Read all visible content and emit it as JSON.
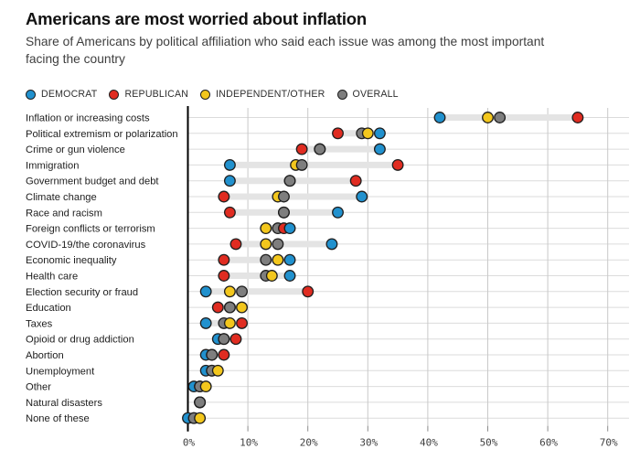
{
  "header": {
    "title": "Americans are most worried about inflation",
    "subtitle": "Share of Americans by political affiliation who said each issue was among the most important facing the country"
  },
  "legend": {
    "items": [
      {
        "key": "democrat",
        "label": "DEMOCRAT",
        "color": "#2191CE"
      },
      {
        "key": "republican",
        "label": "REPUBLICAN",
        "color": "#E02C21"
      },
      {
        "key": "independent",
        "label": "INDEPENDENT/OTHER",
        "color": "#F3C71D"
      },
      {
        "key": "overall",
        "label": "OVERALL",
        "color": "#7E7E7E"
      }
    ]
  },
  "chart_data": {
    "type": "scatter",
    "variant": "dumbbell dot plot",
    "title": "Americans are most worried about inflation",
    "subtitle": "Share of Americans by political affiliation who said each issue was among the most important facing the country",
    "xlabel": "",
    "ylabel": "",
    "xlim": [
      0,
      70
    ],
    "x_ticks": [
      "0%",
      "10%",
      "20%",
      "30%",
      "40%",
      "50%",
      "60%",
      "70%"
    ],
    "grid": true,
    "legend_position": "top",
    "categories": [
      "Inflation or increasing costs",
      "Political extremism or polarization",
      "Crime or gun violence",
      "Immigration",
      "Government budget and debt",
      "Climate change",
      "Race and racism",
      "Foreign conflicts or terrorism",
      "COVID-19/the coronavirus",
      "Economic inequality",
      "Health care",
      "Election security or fraud",
      "Education",
      "Taxes",
      "Opioid or drug addiction",
      "Abortion",
      "Unemployment",
      "Other",
      "Natural disasters",
      "None of these"
    ],
    "series": [
      {
        "name": "DEMOCRAT",
        "key": "democrat",
        "color": "#2191CE",
        "values": [
          42,
          32,
          32,
          7,
          7,
          29,
          25,
          17,
          24,
          17,
          17,
          3,
          7,
          3,
          5,
          3,
          3,
          1,
          2,
          0
        ]
      },
      {
        "name": "REPUBLICAN",
        "key": "republican",
        "color": "#E02C21",
        "values": [
          65,
          25,
          19,
          35,
          28,
          6,
          7,
          16,
          8,
          6,
          6,
          20,
          5,
          9,
          8,
          6,
          4,
          2,
          2,
          1
        ]
      },
      {
        "name": "INDEPENDENT/OTHER",
        "key": "independent",
        "color": "#F3C71D",
        "values": [
          50,
          30,
          22,
          18,
          17,
          15,
          16,
          13,
          13,
          15,
          14,
          7,
          9,
          7,
          6,
          4,
          5,
          3,
          2,
          2
        ]
      },
      {
        "name": "OVERALL",
        "key": "overall",
        "color": "#7E7E7E",
        "values": [
          52,
          29,
          22,
          19,
          17,
          16,
          16,
          15,
          15,
          13,
          13,
          9,
          7,
          6,
          6,
          4,
          4,
          2,
          2,
          1
        ]
      }
    ],
    "style": {
      "range_bar_color": "#E4E4E4",
      "dot_outline_color": "#1F1F1F",
      "h_gridline_color": "#DBDBDB",
      "v_gridline_color": "#C9C9C9",
      "axis_color": "#000000",
      "tick_color": "#8A8A8A"
    }
  }
}
